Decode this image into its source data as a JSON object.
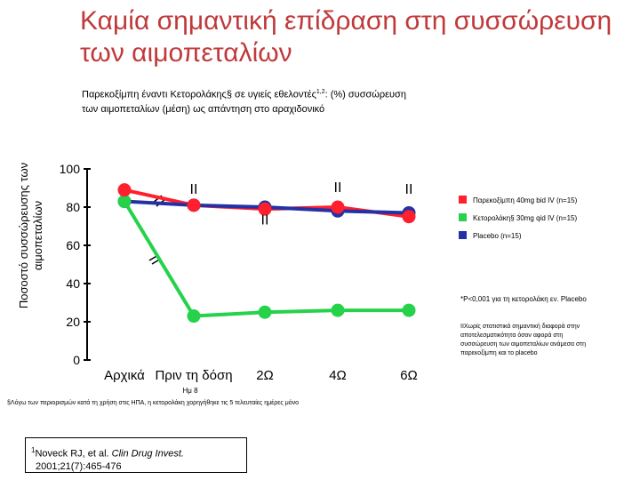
{
  "title": "Καμία σημαντική επίδραση στη συσσώρευση των αιμοπεταλίων",
  "subtitle": {
    "text_before_sup": "Παρεκοξίμπη έναντι Κετορολάκης§ σε υγιείς εθελοντές",
    "sup": "1,2",
    "text_after_sup": ": (%) συσσώρευση των αιμοπεταλίων (μέση) ως απάντηση στο αραχιδονικό"
  },
  "colors": {
    "title": "#c0393b",
    "parecoxib": "#ff1f2d",
    "ketorolac": "#26d24a",
    "placebo": "#2431a6"
  },
  "chart_data": {
    "type": "line",
    "title": "",
    "ylabel": "Ποσοστό συσσώρευσης των αιμοπεταλίων",
    "xlabel": "",
    "ylim": [
      0,
      100
    ],
    "yticks": [
      0,
      20,
      40,
      60,
      80,
      100
    ],
    "categories": [
      "Αρχικά",
      "Πριν τη δόση",
      "2Ω",
      "4Ω",
      "6Ω"
    ],
    "category_sublabels": [
      "",
      "Ημ 8",
      "",
      "",
      ""
    ],
    "series": [
      {
        "name": "Παρεκοξίμπη 40mg bid IV (n=15)",
        "color": "#ff1f2d",
        "values": [
          89,
          81,
          79,
          80,
          75
        ]
      },
      {
        "name": "Κετορολάκη§ 30mg qid IV (n=15)",
        "color": "#26d24a",
        "values": [
          83,
          23,
          25,
          26,
          26
        ]
      },
      {
        "name": "Placebo (n=15)",
        "color": "#2431a6",
        "values": [
          83,
          81,
          80,
          78,
          77
        ]
      }
    ],
    "annotations": [
      {
        "text": "II",
        "category": 1,
        "value": 87
      },
      {
        "text": "II",
        "category": 3,
        "value": 88
      },
      {
        "text": "II",
        "category": 4,
        "value": 87
      },
      {
        "text": "II",
        "category": 2,
        "value": 71
      }
    ],
    "legend_position": "right"
  },
  "notes": {
    "p_value": "*P<0,001 για τη κετορολάκη εν. Placebo",
    "dagger": "IIΧωρίς στατιστικά σημαντική διαφορά στην αποτελεσματικότητα όσον αφορά στη συσσώρευση των αιμοπεταλίων ανάμεσα στη παρεκοξίμπη και το placebo"
  },
  "footnote": "§Λόγω των περιορισμών κατά τη χρήση στις ΗΠΑ, η κετορολάκη χορηγήθηκε τις 5 τελευταίες ημέρες μόνο",
  "reference": {
    "num": "1",
    "authors": "Noveck RJ, et al. ",
    "journal": "Clin Drug Invest.",
    "citation": "2001;21(7):465-476"
  }
}
